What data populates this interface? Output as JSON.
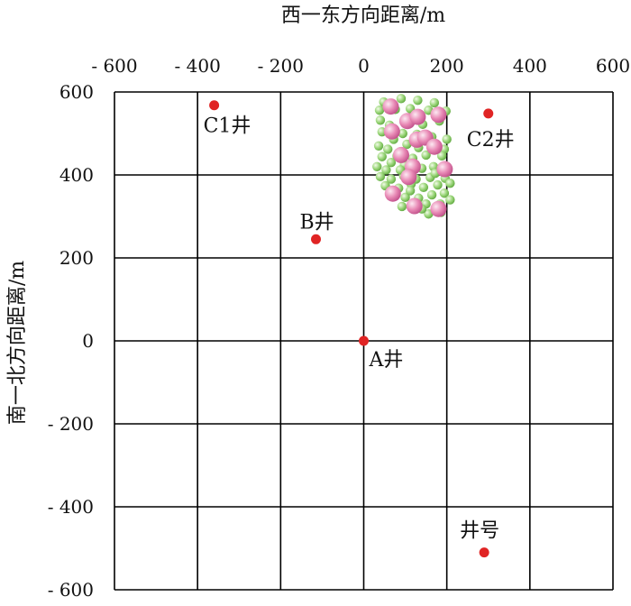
{
  "chart_data": {
    "type": "scatter",
    "title": "",
    "xlabel": "西一东方向距离/m",
    "ylabel": "南一北方向距离/m",
    "xlim": [
      -600,
      600
    ],
    "ylim": [
      -600,
      600
    ],
    "x_ticks": [
      -600,
      -400,
      -200,
      0,
      200,
      400,
      600
    ],
    "y_ticks": [
      600,
      400,
      200,
      0,
      -200,
      -400,
      -600
    ],
    "x_tick_labels": [
      "- 600",
      "- 400",
      "- 200",
      "0",
      "200",
      "400",
      "600"
    ],
    "y_tick_labels": [
      "600",
      "400",
      "200",
      "0",
      "- 200",
      "- 400",
      "- 600"
    ],
    "x_axis_position": "top",
    "grid": true,
    "colors": {
      "well": "#e02424",
      "grid": "#000000",
      "event_small": "#9bd67a",
      "event_large": "#e889b5"
    },
    "wells": [
      {
        "label": "A井",
        "x": 0,
        "y": 0
      },
      {
        "label": "B井",
        "x": -115,
        "y": 245
      },
      {
        "label": "C1井",
        "x": -360,
        "y": 568
      },
      {
        "label": "C2井",
        "x": 300,
        "y": 548
      }
    ],
    "legend": {
      "label": "井号",
      "x": 290,
      "y": -510
    },
    "events_small": [
      [
        48,
        576
      ],
      [
        90,
        584
      ],
      [
        130,
        580
      ],
      [
        170,
        574
      ],
      [
        38,
        556
      ],
      [
        76,
        558
      ],
      [
        112,
        560
      ],
      [
        156,
        556
      ],
      [
        198,
        554
      ],
      [
        40,
        532
      ],
      [
        62,
        520
      ],
      [
        108,
        528
      ],
      [
        142,
        522
      ],
      [
        182,
        530
      ],
      [
        44,
        504
      ],
      [
        72,
        486
      ],
      [
        94,
        500
      ],
      [
        128,
        498
      ],
      [
        164,
        492
      ],
      [
        200,
        486
      ],
      [
        36,
        470
      ],
      [
        58,
        462
      ],
      [
        104,
        474
      ],
      [
        132,
        466
      ],
      [
        176,
        470
      ],
      [
        194,
        462
      ],
      [
        44,
        444
      ],
      [
        80,
        446
      ],
      [
        118,
        440
      ],
      [
        150,
        448
      ],
      [
        188,
        446
      ],
      [
        32,
        420
      ],
      [
        54,
        412
      ],
      [
        98,
        424
      ],
      [
        140,
        416
      ],
      [
        168,
        420
      ],
      [
        200,
        416
      ],
      [
        40,
        396
      ],
      [
        66,
        390
      ],
      [
        96,
        398
      ],
      [
        126,
        390
      ],
      [
        160,
        394
      ],
      [
        196,
        392
      ],
      [
        52,
        374
      ],
      [
        84,
        368
      ],
      [
        114,
        378
      ],
      [
        144,
        370
      ],
      [
        178,
        376
      ],
      [
        208,
        380
      ],
      [
        68,
        350
      ],
      [
        100,
        346
      ],
      [
        132,
        344
      ],
      [
        164,
        352
      ],
      [
        194,
        356
      ],
      [
        120,
        326
      ],
      [
        150,
        330
      ],
      [
        184,
        330
      ],
      [
        208,
        340
      ],
      [
        92,
        324
      ],
      [
        156,
        306
      ],
      [
        186,
        310
      ],
      [
        140,
        318
      ],
      [
        112,
        362
      ],
      [
        66,
        430
      ],
      [
        172,
        404
      ],
      [
        88,
        412
      ]
    ],
    "events_large": [
      [
        65,
        565
      ],
      [
        105,
        530
      ],
      [
        130,
        540
      ],
      [
        180,
        545
      ],
      [
        68,
        505
      ],
      [
        128,
        485
      ],
      [
        148,
        490
      ],
      [
        170,
        468
      ],
      [
        90,
        448
      ],
      [
        118,
        420
      ],
      [
        195,
        414
      ],
      [
        108,
        395
      ],
      [
        70,
        355
      ],
      [
        122,
        325
      ],
      [
        180,
        318
      ]
    ]
  }
}
